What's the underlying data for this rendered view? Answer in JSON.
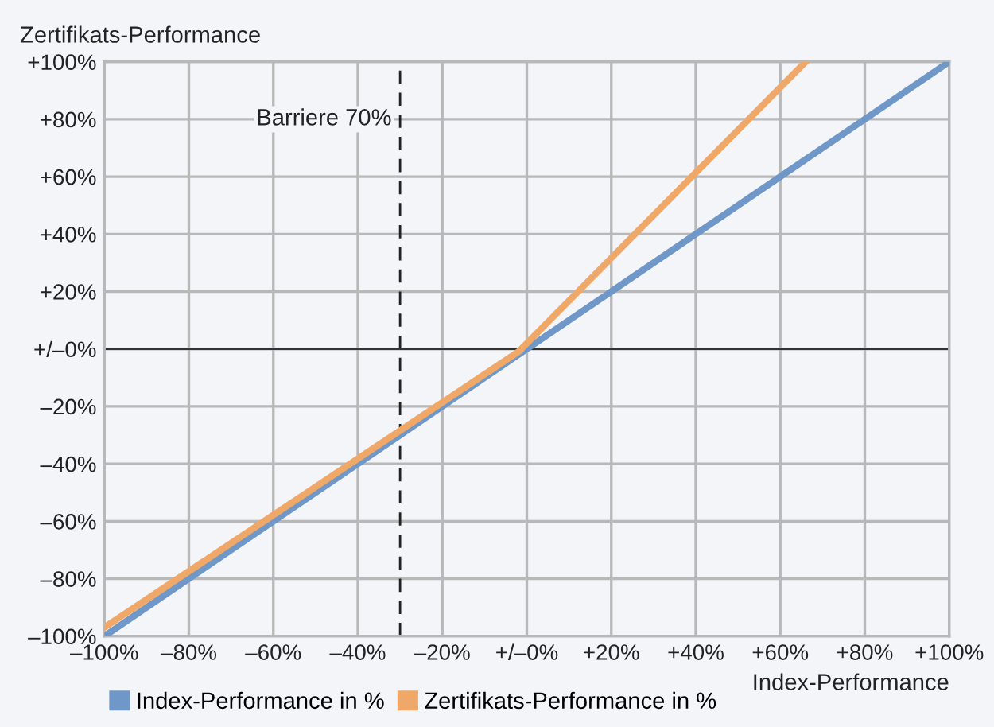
{
  "chart_data": {
    "type": "line",
    "xlabel": "Index-Performance",
    "ylabel": "Zertifikats-Performance",
    "series": [
      {
        "name": "Index-Performance in %",
        "color": "#6f98c8",
        "x": [
          -100,
          100
        ],
        "values": [
          -100,
          100
        ]
      },
      {
        "name": "Zertifikats-Performance in %",
        "color": "#f0a868",
        "x": [
          -100,
          -2,
          66
        ],
        "values": [
          -97,
          -1,
          100
        ]
      }
    ],
    "xlim": [
      -100,
      100
    ],
    "ylim": [
      -100,
      100
    ],
    "xticks": [
      {
        "value": -100,
        "label": "–100%"
      },
      {
        "value": -80,
        "label": "–80%"
      },
      {
        "value": -60,
        "label": "–60%"
      },
      {
        "value": -40,
        "label": "–40%"
      },
      {
        "value": -20,
        "label": "–20%"
      },
      {
        "value": 0,
        "label": "+/–0%"
      },
      {
        "value": 20,
        "label": "+20%"
      },
      {
        "value": 40,
        "label": "+40%"
      },
      {
        "value": 60,
        "label": "+60%"
      },
      {
        "value": 80,
        "label": "+80%"
      },
      {
        "value": 100,
        "label": "+100%"
      }
    ],
    "yticks": [
      {
        "value": -100,
        "label": "–100%"
      },
      {
        "value": -80,
        "label": "–80%"
      },
      {
        "value": -60,
        "label": "–60%"
      },
      {
        "value": -40,
        "label": "–40%"
      },
      {
        "value": -20,
        "label": "–20%"
      },
      {
        "value": 0,
        "label": "+/–0%"
      },
      {
        "value": 20,
        "label": "+20%"
      },
      {
        "value": 40,
        "label": "+40%"
      },
      {
        "value": 60,
        "label": "+60%"
      },
      {
        "value": 80,
        "label": "+80%"
      },
      {
        "value": 100,
        "label": "+100%"
      }
    ],
    "ref_lines": [
      {
        "axis": "x",
        "value": -30,
        "label": "Barriere 70%",
        "color": "#222222",
        "line_style": "dashed"
      },
      {
        "axis": "y",
        "value": 0,
        "color": "#333333",
        "line_style": "solid"
      }
    ],
    "grid": true,
    "legend": "bottom left",
    "line_style": "solid",
    "marker": "none"
  }
}
